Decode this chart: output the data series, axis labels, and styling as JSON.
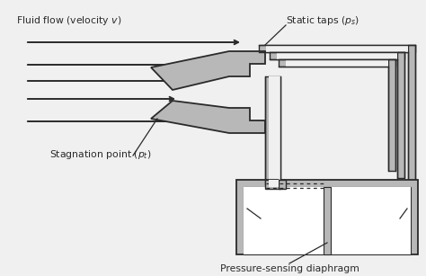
{
  "bg_color": "#f0f0f0",
  "line_color": "#2a2a2a",
  "gray_fill": "#b8b8b8",
  "white": "#ffffff",
  "figsize": [
    4.74,
    3.07
  ],
  "dpi": 100
}
